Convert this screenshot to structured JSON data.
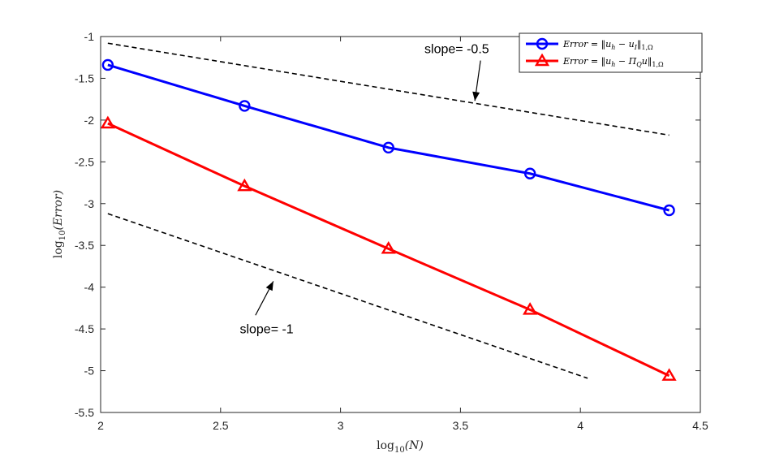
{
  "chart_data": {
    "type": "line",
    "title": "",
    "xlabel": "log10(N)",
    "ylabel": "log10(Error)",
    "xlim": [
      2,
      4.5
    ],
    "ylim": [
      -5.5,
      -1
    ],
    "xticks": [
      "2",
      "2.5",
      "3",
      "3.5",
      "4",
      "4.5"
    ],
    "yticks": [
      "-1",
      "-1.5",
      "-2",
      "-2.5",
      "-3",
      "-3.5",
      "-4",
      "-4.5",
      "-5",
      "-5.5"
    ],
    "series": [
      {
        "name": "Error = ||u_h - u_I||_{1,Ω}",
        "color": "#0000ff",
        "marker": "circle",
        "x": [
          2.03,
          2.6,
          3.2,
          3.79,
          4.37
        ],
        "y": [
          -1.34,
          -1.83,
          -2.33,
          -2.64,
          -3.08
        ]
      },
      {
        "name": "Error = ||u_h - Π_Q u||_{1,Ω}",
        "color": "#ff0000",
        "marker": "triangle",
        "x": [
          2.03,
          2.6,
          3.2,
          3.79,
          4.37
        ],
        "y": [
          -2.04,
          -2.79,
          -3.54,
          -4.27,
          -5.06
        ]
      }
    ],
    "reference_lines": [
      {
        "name": "slope -0.5",
        "x": [
          2.03,
          4.37
        ],
        "y": [
          -1.08,
          -2.18
        ],
        "color": "#000000",
        "style": "dashed"
      },
      {
        "name": "slope -1",
        "x": [
          2.03,
          4.03
        ],
        "y": [
          -3.12,
          -5.09
        ],
        "color": "#000000",
        "style": "dashed"
      }
    ],
    "annotations": [
      {
        "text": "slope= -0.5",
        "at": [
          3.35,
          -1.2
        ],
        "arrow_to": [
          3.56,
          -1.77
        ]
      },
      {
        "text": "slope= -1",
        "at": [
          2.58,
          -4.55
        ],
        "arrow_to": [
          2.72,
          -3.93
        ]
      }
    ],
    "legend": {
      "location": "top-right",
      "entries": [
        {
          "lhs": "Error",
          "rhs": "‖u",
          "sub": "h",
          "mid": " − u",
          "sub2": "I",
          "tail": "‖",
          "norm": "1,Ω"
        },
        {
          "lhs": "Error",
          "rhs": "‖u",
          "sub": "h",
          "mid": " − Π",
          "sub2": "Q",
          "tail": "u‖",
          "norm": "1,Ω"
        }
      ]
    },
    "axis_label_parts": {
      "x": {
        "fn": "log",
        "sub": "10",
        "arg": "(N)"
      },
      "y": {
        "fn": "log",
        "sub": "10",
        "arg": "(Error)"
      }
    },
    "grid": false
  }
}
